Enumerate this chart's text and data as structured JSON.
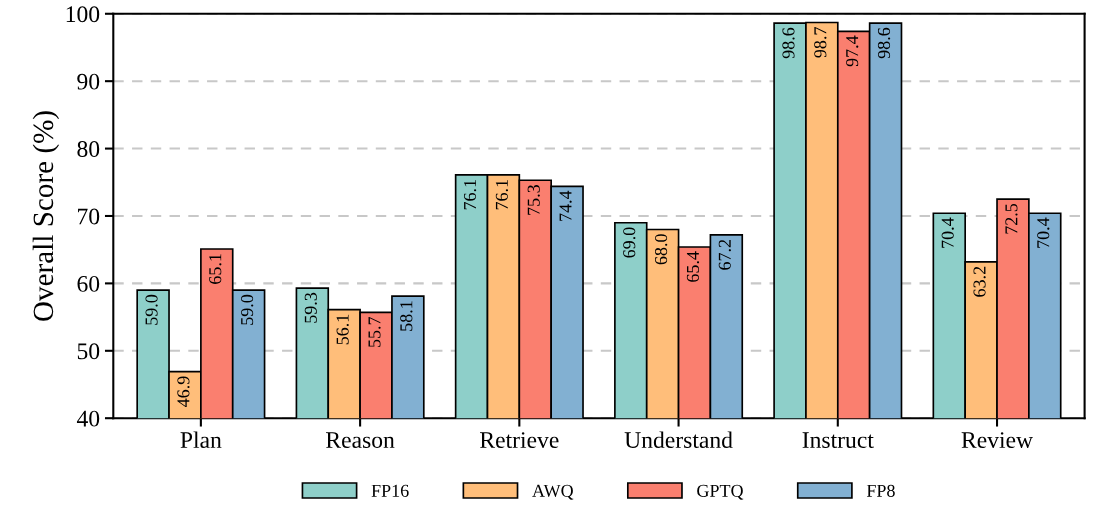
{
  "chart_data": {
    "type": "bar",
    "ylabel": "Overall Score (%)",
    "categories": [
      "Plan",
      "Reason",
      "Retrieve",
      "Understand",
      "Instruct",
      "Review"
    ],
    "series": [
      {
        "name": "FP16",
        "color": "#8ecfc9",
        "values": [
          59.0,
          59.3,
          76.1,
          69.0,
          98.6,
          70.4
        ],
        "value_labels": [
          "59.0",
          "59.3",
          "76.1",
          "69.0",
          "98.6",
          "70.4"
        ]
      },
      {
        "name": "AWQ",
        "color": "#ffbe7a",
        "values": [
          46.9,
          56.1,
          76.1,
          68.0,
          98.7,
          63.2
        ],
        "value_labels": [
          "46.9",
          "56.1",
          "76.1",
          "68.0",
          "98.7",
          "63.2"
        ]
      },
      {
        "name": "GPTQ",
        "color": "#fa7f6f",
        "values": [
          65.1,
          55.7,
          75.3,
          65.4,
          97.4,
          72.5
        ],
        "value_labels": [
          "65.1",
          "55.7",
          "75.3",
          "65.4",
          "97.4",
          "72.5"
        ]
      },
      {
        "name": "FP8",
        "color": "#82b0d2",
        "values": [
          59.0,
          58.1,
          74.4,
          67.2,
          98.6,
          70.4
        ],
        "value_labels": [
          "59.0",
          "58.1",
          "74.4",
          "67.2",
          "98.6",
          "70.4"
        ]
      }
    ],
    "ylim": [
      40,
      100
    ],
    "yticks": [
      40,
      50,
      60,
      70,
      80,
      90,
      100
    ],
    "grid": "y",
    "legend": "bottom"
  }
}
